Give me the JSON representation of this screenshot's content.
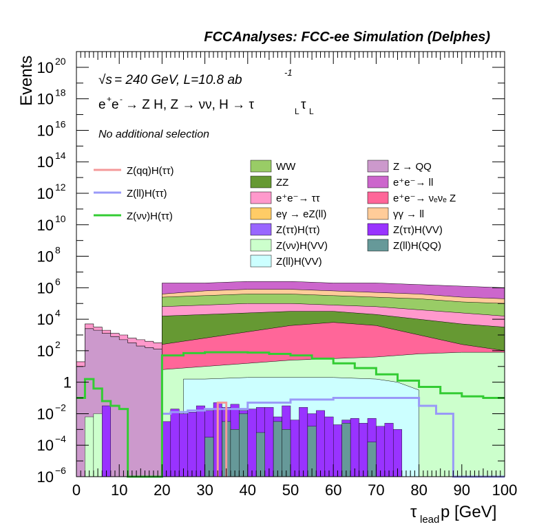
{
  "chart_data": {
    "type": "area",
    "title": "FCCAnalyses: FCC-ee Simulation (Delphes)",
    "xlabel": {
      "main": "τ",
      "sub": "lead",
      "rest": " p [GeV]"
    },
    "ylabel": "Events",
    "xlim": [
      0,
      100
    ],
    "ylim": [
      1e-06,
      1e+21
    ],
    "yscale": "log",
    "xticks": [
      0,
      10,
      20,
      30,
      40,
      50,
      60,
      70,
      80,
      90,
      100
    ],
    "xtick_labels": [
      "0",
      "10",
      "20",
      "30",
      "40",
      "50",
      "60",
      "70",
      "80",
      "90",
      "100"
    ],
    "yticks": [
      {
        "exp": -6,
        "base": "10",
        "sup": "−6"
      },
      {
        "exp": -4,
        "base": "10",
        "sup": "−4"
      },
      {
        "exp": -2,
        "base": "10",
        "sup": "−2"
      },
      {
        "exp": 0,
        "base": "1",
        "sup": ""
      },
      {
        "exp": 2,
        "base": "10",
        "sup": "2"
      },
      {
        "exp": 4,
        "base": "10",
        "sup": "4"
      },
      {
        "exp": 6,
        "base": "10",
        "sup": "6"
      },
      {
        "exp": 8,
        "base": "10",
        "sup": "8"
      },
      {
        "exp": 10,
        "base": "10",
        "sup": "10"
      },
      {
        "exp": 12,
        "base": "10",
        "sup": "12"
      },
      {
        "exp": 14,
        "base": "10",
        "sup": "14"
      },
      {
        "exp": 16,
        "base": "10",
        "sup": "16"
      },
      {
        "exp": 18,
        "base": "10",
        "sup": "18"
      },
      {
        "exp": 20,
        "base": "10",
        "sup": "20"
      }
    ],
    "annotations": {
      "energy_sqrt": "√s",
      "energy_rest": " = 240 GeV, L=10.8 ab",
      "energy_sup": "-1",
      "process_1": "e",
      "process_1_sup": "+",
      "process_2": "e",
      "process_2_sup": "-",
      "process_rest": " → Z H, Z → νν, H → τ",
      "process_sub1": "L",
      "process_tau": "τ",
      "process_sub2": "L",
      "selection": "No additional selection"
    },
    "legend_lines": [
      {
        "name": "Z(qq)H(ττ)",
        "color": "#f4999a"
      },
      {
        "name": "Z(ll)H(ττ)",
        "color": "#9999f8"
      },
      {
        "name": "Z(νν)H(ττ)",
        "color": "#33cc33"
      }
    ],
    "legend_fills": [
      {
        "name": "WW",
        "color": "#99cc66"
      },
      {
        "name": "ZZ",
        "color": "#669933"
      },
      {
        "name": "e⁺e⁻→ ττ",
        "color": "#ff99cc"
      },
      {
        "name": "eγ → eZ(ll)",
        "color": "#ffcc66"
      },
      {
        "name": "Z(ττ)H(ττ)",
        "color": "#9966ff"
      },
      {
        "name": "Z(νν)H(VV)",
        "color": "#ccffcc"
      },
      {
        "name": "Z(ll)H(VV)",
        "color": "#ccffff"
      },
      {
        "name": "Z → QQ",
        "color": "#cc99cc"
      },
      {
        "name": "e⁺e⁻→ ll",
        "color": "#cc66cc"
      },
      {
        "name": "e⁺e⁻→ νₑνₑ Z",
        "color": "#ff6699"
      },
      {
        "name": "γγ → ll",
        "color": "#ffcc99"
      },
      {
        "name": "Z(ττ)H(VV)",
        "color": "#9933ff"
      },
      {
        "name": "Z(ll)H(QQ)",
        "color": "#669999"
      }
    ],
    "stack_levels_log10": {
      "x_bins_low_region": [
        0,
        2,
        4,
        6,
        8,
        10,
        12,
        14,
        16,
        18,
        20
      ],
      "low_total": [
        1.3,
        3.7,
        3.5,
        3.3,
        3.1,
        3.0,
        2.8,
        2.7,
        2.6,
        2.5
      ],
      "low_zqq": [
        1.0,
        3.4,
        3.3,
        3.1,
        2.9,
        2.7,
        2.5,
        2.3,
        2.2,
        2.1
      ],
      "x_high_region": [
        20,
        30,
        40,
        50,
        60,
        70,
        80,
        90,
        100
      ],
      "high_total": [
        6.3,
        6.3,
        6.4,
        6.4,
        6.3,
        6.3,
        6.2,
        6.1,
        6.0
      ],
      "high_ll": [
        5.6,
        5.8,
        5.9,
        5.9,
        5.8,
        5.7,
        5.6,
        5.4,
        5.3
      ],
      "high_gg": [
        5.4,
        5.5,
        5.6,
        5.6,
        5.5,
        5.4,
        5.3,
        5.1,
        5.0
      ],
      "high_tautau": [
        4.8,
        4.9,
        5.0,
        5.0,
        4.9,
        4.8,
        4.6,
        4.4,
        4.2
      ],
      "high_ww": [
        4.2,
        4.3,
        4.4,
        4.5,
        4.5,
        4.3,
        4.0,
        3.7,
        3.5
      ],
      "high_zz": [
        2.4,
        2.8,
        3.2,
        3.6,
        3.8,
        3.6,
        3.0,
        2.4,
        2.0
      ],
      "high_nunuz": [
        0.8,
        1.0,
        1.2,
        1.4,
        1.5,
        1.6,
        1.8,
        1.9,
        1.9
      ]
    },
    "signal_znunu_tautau_log10": {
      "x": [
        0,
        2,
        4,
        6,
        8,
        10,
        12,
        14,
        18,
        20,
        25,
        30,
        35,
        40,
        45,
        50,
        55,
        60,
        65,
        70,
        75,
        80,
        85,
        90,
        95,
        100
      ],
      "y": [
        -1,
        0.2,
        -0.4,
        -1.2,
        -1.5,
        -1.7,
        -6,
        -6,
        -6,
        1.7,
        1.85,
        1.9,
        1.9,
        1.88,
        1.8,
        1.7,
        1.5,
        1.2,
        0.9,
        0.5,
        0.1,
        -0.3,
        -0.7,
        -0.9,
        -1.0,
        -1.0
      ]
    },
    "signal_zll_tautau_log10": {
      "x": [
        20,
        22,
        26,
        30,
        40,
        50,
        60,
        70,
        74,
        80,
        84,
        86,
        88,
        100
      ],
      "y": [
        -2,
        -1.9,
        -1.8,
        -1.7,
        -1.3,
        -1.1,
        -1.0,
        -1.0,
        -1.0,
        -1.5,
        -2,
        -2,
        -6,
        -6
      ]
    }
  }
}
